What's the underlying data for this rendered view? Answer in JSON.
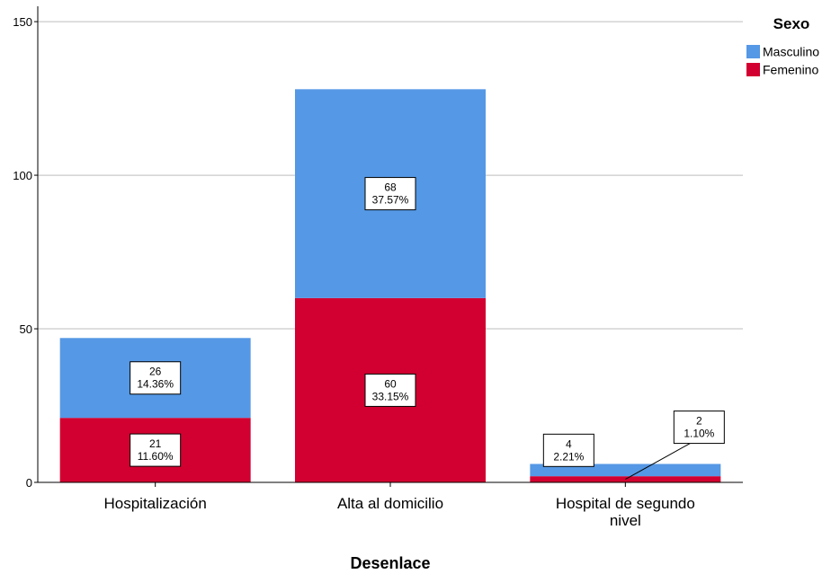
{
  "chart_data": {
    "type": "bar",
    "stacked": true,
    "xlabel": "Desenlace",
    "ylabel": "",
    "ylim": [
      0,
      155
    ],
    "yticks": [
      0,
      50,
      100,
      150
    ],
    "grid": true,
    "legend_title": "Sexo",
    "legend_position": "top-right",
    "categories": [
      [
        "Hospitalización"
      ],
      [
        "Alta al domicilio"
      ],
      [
        "Hospital de segundo",
        "nivel"
      ]
    ],
    "series": [
      {
        "name": "Femenino",
        "color": "#d20030",
        "values": [
          21,
          60,
          2
        ],
        "labels": [
          [
            "21",
            "11.60%"
          ],
          [
            "60",
            "33.15%"
          ],
          [
            "2",
            "1.10%"
          ]
        ]
      },
      {
        "name": "Masculino",
        "color": "#5598e5",
        "values": [
          26,
          68,
          4
        ],
        "labels": [
          [
            "26",
            "14.36%"
          ],
          [
            "68",
            "37.57%"
          ],
          [
            "4",
            "2.21%"
          ]
        ]
      }
    ],
    "legend_order": [
      "Masculino",
      "Femenino"
    ]
  }
}
